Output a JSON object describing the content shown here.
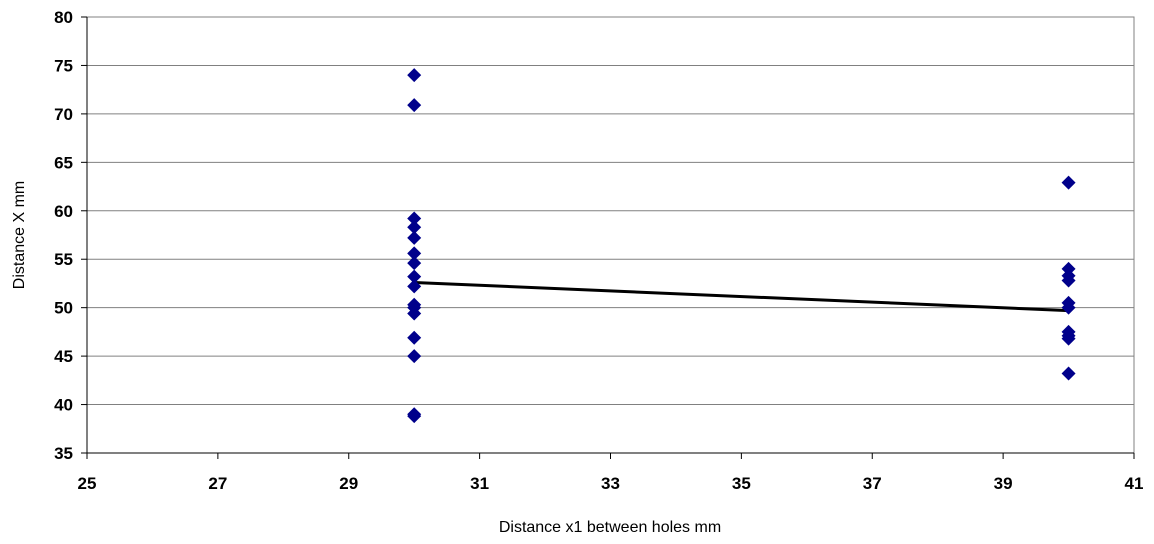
{
  "chart_data": {
    "type": "scatter",
    "title": "",
    "xlabel": "Distance x1 between holes mm",
    "ylabel": "Distance X mm",
    "xlim": [
      25,
      41
    ],
    "ylim": [
      35,
      80
    ],
    "xticks": [
      25,
      27,
      29,
      31,
      33,
      35,
      37,
      39,
      41
    ],
    "yticks": [
      35,
      40,
      45,
      50,
      55,
      60,
      65,
      70,
      75,
      80
    ],
    "grid": "horizontal",
    "legend": "none",
    "series": [
      {
        "marker": "diamond",
        "color": "#00008B",
        "points": [
          [
            30,
            74.0
          ],
          [
            30,
            70.9
          ],
          [
            30,
            59.2
          ],
          [
            30,
            58.3
          ],
          [
            30,
            57.2
          ],
          [
            30,
            55.6
          ],
          [
            30,
            54.6
          ],
          [
            30,
            53.2
          ],
          [
            30,
            52.2
          ],
          [
            30,
            50.3
          ],
          [
            30,
            50.0
          ],
          [
            30,
            49.4
          ],
          [
            30,
            46.9
          ],
          [
            30,
            45.0
          ],
          [
            30,
            39.0
          ],
          [
            30,
            38.8
          ],
          [
            40,
            62.9
          ],
          [
            40,
            54.0
          ],
          [
            40,
            53.3
          ],
          [
            40,
            52.8
          ],
          [
            40,
            50.5
          ],
          [
            40,
            50.0
          ],
          [
            40,
            47.5
          ],
          [
            40,
            47.1
          ],
          [
            40,
            46.8
          ],
          [
            40,
            43.2
          ]
        ]
      }
    ],
    "trendline": {
      "color": "#000000",
      "points": [
        [
          30,
          52.6
        ],
        [
          40,
          49.7
        ]
      ]
    }
  }
}
